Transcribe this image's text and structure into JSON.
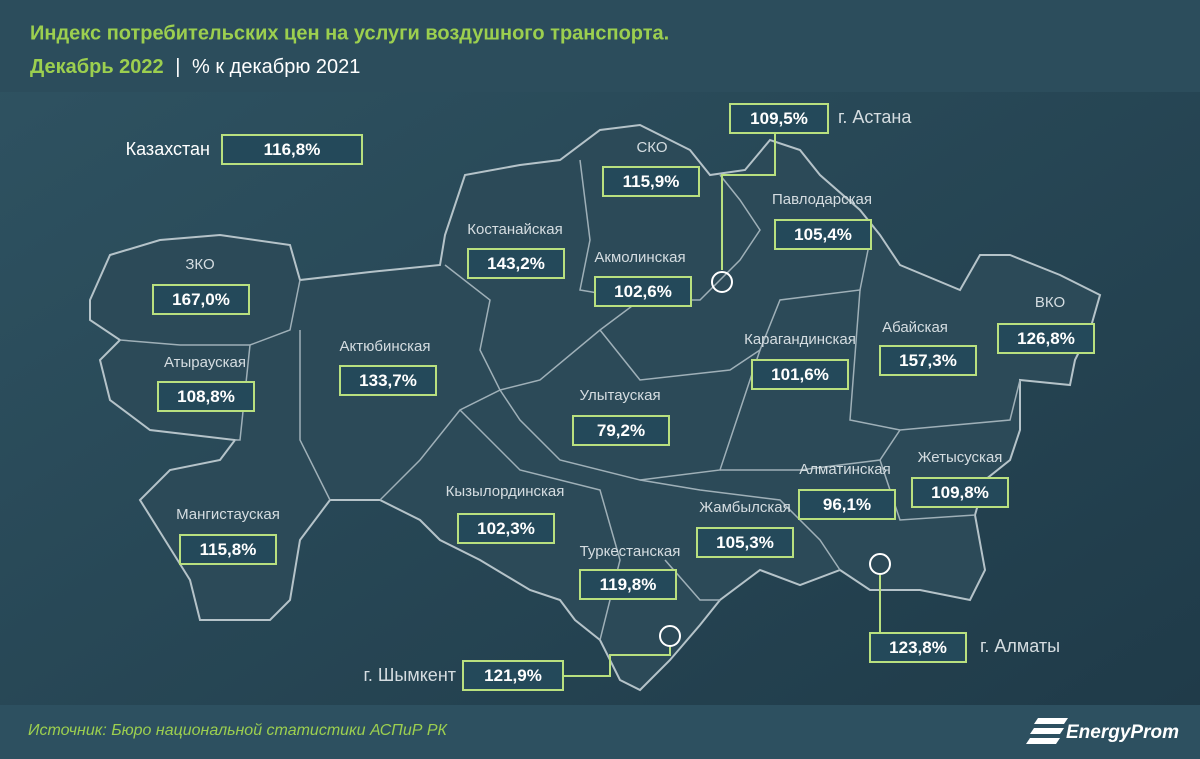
{
  "header": {
    "title": "Индекс потребительских цен на услуги воздушного транспорта.",
    "subtitle_period": "Декабрь 2022",
    "subtitle_separator": "|",
    "subtitle_unit": "% к декабрю 2021"
  },
  "national": {
    "name": "Казахстан",
    "value": "116,8%"
  },
  "regions": [
    {
      "name": "СКО",
      "value": "115,9%"
    },
    {
      "name": "Павлодарская",
      "value": "105,4%"
    },
    {
      "name": "Костанайская",
      "value": "143,2%"
    },
    {
      "name": "Акмолинская",
      "value": "102,6%"
    },
    {
      "name": "ЗКО",
      "value": "167,0%"
    },
    {
      "name": "Актюбинская",
      "value": "133,7%"
    },
    {
      "name": "Атырауская",
      "value": "108,8%"
    },
    {
      "name": "Карагандинская",
      "value": "101,6%"
    },
    {
      "name": "Абайская",
      "value": "157,3%"
    },
    {
      "name": "ВКО",
      "value": "126,8%"
    },
    {
      "name": "Улытауская",
      "value": "79,2%"
    },
    {
      "name": "Кызылординская",
      "value": "102,3%"
    },
    {
      "name": "Жамбылская",
      "value": "105,3%"
    },
    {
      "name": "Алматинская",
      "value": "96,1%"
    },
    {
      "name": "Жетысуская",
      "value": "109,8%"
    },
    {
      "name": "Мангистауская",
      "value": "115,8%"
    },
    {
      "name": "Туркестанская",
      "value": "119,8%"
    }
  ],
  "cities": [
    {
      "name": "г. Астана",
      "value": "109,5%"
    },
    {
      "name": "г. Шымкент",
      "value": "121,9%"
    },
    {
      "name": "г. Алматы",
      "value": "123,8%"
    }
  ],
  "footer": {
    "source": "Источник: Бюро национальной статистики АСПиР РК",
    "logo": "EnergyProm"
  }
}
